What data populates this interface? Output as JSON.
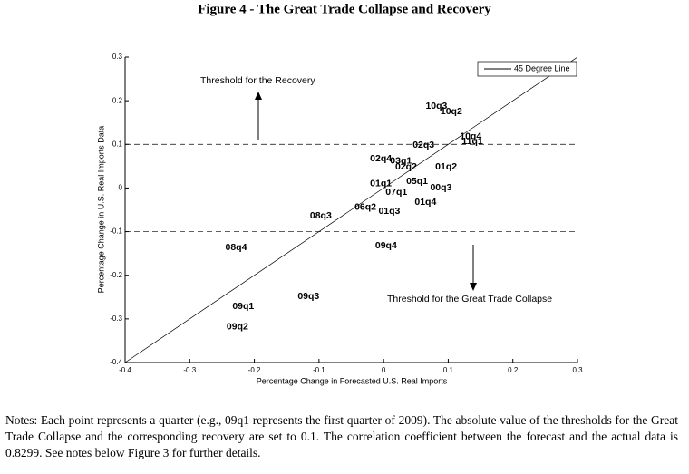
{
  "chart_data": {
    "type": "scatter",
    "title": "Figure 4 - The Great Trade Collapse and Recovery",
    "x_label": "Percentage Change in Forecasted U.S. Real Imports",
    "y_label": "Percentage Change in U.S. Real Imports Data",
    "xlim": [
      -0.4,
      0.3
    ],
    "ylim": [
      -0.4,
      0.3
    ],
    "xticks": [
      -0.4,
      -0.3,
      -0.2,
      -0.1,
      0,
      0.1,
      0.2,
      0.3
    ],
    "yticks": [
      -0.4,
      -0.3,
      -0.2,
      -0.1,
      0,
      0.1,
      0.2,
      0.3
    ],
    "thresholds": [
      0.1,
      -0.1
    ],
    "reference_line": {
      "name": "45 Degree Line",
      "color": "#000000"
    },
    "annotations": [
      "Threshold for the Recovery",
      "Threshold for the Great Trade Collapse"
    ],
    "color": "#000000",
    "point_labels": [
      "10q3",
      "10q2",
      "10q4",
      "11q1",
      "02q3",
      "02q4",
      "03q1",
      "02q2",
      "01q1",
      "08q3",
      "08q4",
      "09q4",
      "09q3",
      "09q1",
      "09q2",
      "06q2",
      "01q3",
      "01q4",
      "00q3",
      "01q2",
      "05q1",
      "07q1"
    ],
    "x": [
      0.065,
      0.088,
      0.118,
      0.121,
      0.045,
      -0.021,
      0.01,
      0.018,
      -0.021,
      -0.114,
      -0.245,
      -0.013,
      -0.133,
      -0.234,
      -0.243,
      -0.045,
      -0.008,
      0.048,
      0.072,
      0.08,
      0.035,
      0.003
    ],
    "y": [
      0.187,
      0.175,
      0.118,
      0.106,
      0.098,
      0.067,
      0.062,
      0.048,
      0.01,
      -0.064,
      -0.137,
      -0.133,
      -0.249,
      -0.272,
      -0.318,
      -0.044,
      -0.054,
      -0.033,
      0.0,
      0.048,
      0.015,
      -0.01
    ]
  },
  "notes": "Notes: Each point represents a quarter (e.g., 09q1 represents the first quarter of 2009). The absolute value of the thresholds for the Great Trade Collapse and the corresponding recovery are set to 0.1. The correlation coefficient between the forecast and the actual data is 0.8299. See notes below Figure 3 for further details."
}
